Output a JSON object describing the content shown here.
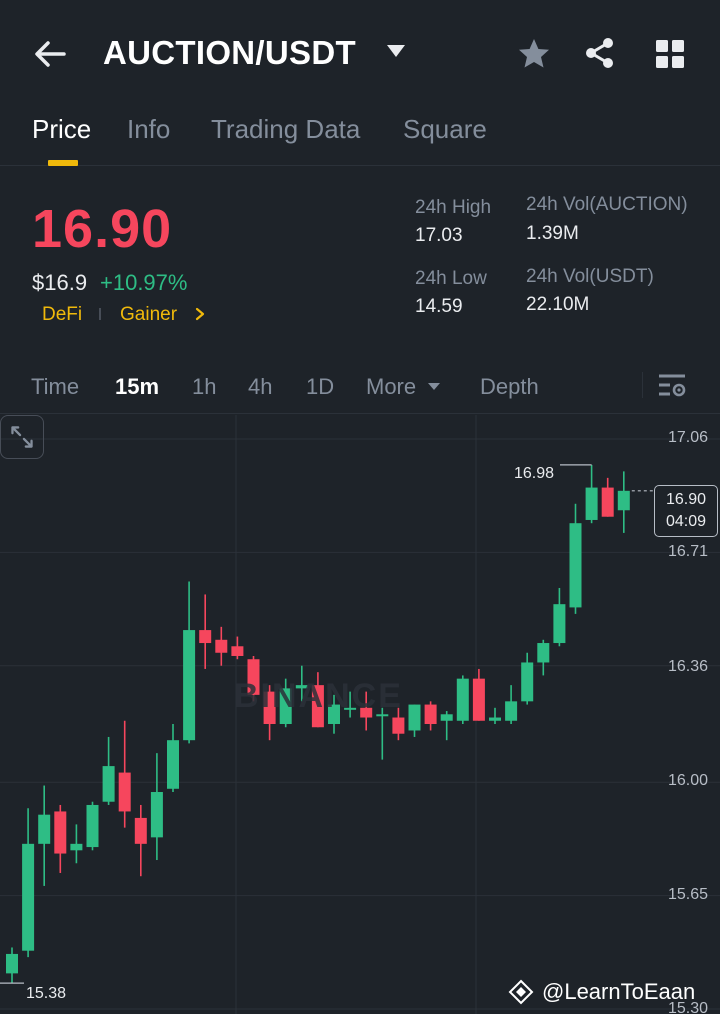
{
  "header": {
    "pair": "AUCTION/USDT",
    "back_icon": "arrow-left-icon",
    "favorite_icon": "star-icon",
    "share_icon": "share-icon",
    "menu_icon": "grid-icon"
  },
  "tabs": [
    {
      "label": "Price",
      "active": true
    },
    {
      "label": "Info",
      "active": false
    },
    {
      "label": "Trading Data",
      "active": false
    },
    {
      "label": "Square",
      "active": false
    }
  ],
  "price": {
    "last": "16.90",
    "usd": "$16.9",
    "change": "+10.97%",
    "tags": [
      "DeFi",
      "Gainer"
    ]
  },
  "stats": {
    "high_label": "24h High",
    "high_value": "17.03",
    "low_label": "24h Low",
    "low_value": "14.59",
    "vol_base_label": "24h Vol(AUCTION)",
    "vol_base_value": "1.39M",
    "vol_quote_label": "24h Vol(USDT)",
    "vol_quote_value": "22.10M"
  },
  "intervals": {
    "items": [
      "Time",
      "15m",
      "1h",
      "4h",
      "1D",
      "More",
      "Depth"
    ],
    "active": "15m"
  },
  "chart_data": {
    "type": "candlestick",
    "interval": "15m",
    "y_ticks": [
      "17.06",
      "16.71",
      "16.36",
      "16.00",
      "15.65",
      "15.30"
    ],
    "ylim": [
      15.3,
      17.06
    ],
    "high_marker": "16.98",
    "low_marker": "15.38",
    "current_price": "16.90",
    "countdown": "04:09",
    "up_color": "#2ebd85",
    "down_color": "#f6465d",
    "candles": [
      {
        "o": 15.41,
        "h": 15.49,
        "l": 15.38,
        "c": 15.47
      },
      {
        "o": 15.48,
        "h": 15.92,
        "l": 15.46,
        "c": 15.81
      },
      {
        "o": 15.81,
        "h": 15.99,
        "l": 15.68,
        "c": 15.9
      },
      {
        "o": 15.91,
        "h": 15.93,
        "l": 15.72,
        "c": 15.78
      },
      {
        "o": 15.79,
        "h": 15.87,
        "l": 15.75,
        "c": 15.81
      },
      {
        "o": 15.8,
        "h": 15.94,
        "l": 15.79,
        "c": 15.93
      },
      {
        "o": 15.94,
        "h": 16.14,
        "l": 15.93,
        "c": 16.05
      },
      {
        "o": 16.03,
        "h": 16.19,
        "l": 15.86,
        "c": 15.91
      },
      {
        "o": 15.89,
        "h": 15.93,
        "l": 15.71,
        "c": 15.81
      },
      {
        "o": 15.83,
        "h": 16.09,
        "l": 15.76,
        "c": 15.97
      },
      {
        "o": 15.98,
        "h": 16.18,
        "l": 15.97,
        "c": 16.13
      },
      {
        "o": 16.13,
        "h": 16.62,
        "l": 16.12,
        "c": 16.47
      },
      {
        "o": 16.47,
        "h": 16.58,
        "l": 16.35,
        "c": 16.43
      },
      {
        "o": 16.44,
        "h": 16.48,
        "l": 16.36,
        "c": 16.4
      },
      {
        "o": 16.42,
        "h": 16.45,
        "l": 16.38,
        "c": 16.39
      },
      {
        "o": 16.38,
        "h": 16.39,
        "l": 16.25,
        "c": 16.27
      },
      {
        "o": 16.28,
        "h": 16.3,
        "l": 16.13,
        "c": 16.18
      },
      {
        "o": 16.18,
        "h": 16.32,
        "l": 16.17,
        "c": 16.29
      },
      {
        "o": 16.29,
        "h": 16.36,
        "l": 16.25,
        "c": 16.3
      },
      {
        "o": 16.3,
        "h": 16.34,
        "l": 16.17,
        "c": 16.17
      },
      {
        "o": 16.18,
        "h": 16.27,
        "l": 16.15,
        "c": 16.24
      },
      {
        "o": 16.23,
        "h": 16.28,
        "l": 16.2,
        "c": 16.23
      },
      {
        "o": 16.23,
        "h": 16.28,
        "l": 16.16,
        "c": 16.2
      },
      {
        "o": 16.21,
        "h": 16.23,
        "l": 16.07,
        "c": 16.21
      },
      {
        "o": 16.2,
        "h": 16.23,
        "l": 16.13,
        "c": 16.15
      },
      {
        "o": 16.16,
        "h": 16.24,
        "l": 16.14,
        "c": 16.24
      },
      {
        "o": 16.24,
        "h": 16.25,
        "l": 16.16,
        "c": 16.18
      },
      {
        "o": 16.19,
        "h": 16.22,
        "l": 16.13,
        "c": 16.21
      },
      {
        "o": 16.19,
        "h": 16.33,
        "l": 16.18,
        "c": 16.32
      },
      {
        "o": 16.32,
        "h": 16.35,
        "l": 16.19,
        "c": 16.19
      },
      {
        "o": 16.19,
        "h": 16.23,
        "l": 16.18,
        "c": 16.2
      },
      {
        "o": 16.19,
        "h": 16.3,
        "l": 16.18,
        "c": 16.25
      },
      {
        "o": 16.25,
        "h": 16.4,
        "l": 16.24,
        "c": 16.37
      },
      {
        "o": 16.37,
        "h": 16.44,
        "l": 16.33,
        "c": 16.43
      },
      {
        "o": 16.43,
        "h": 16.6,
        "l": 16.42,
        "c": 16.55
      },
      {
        "o": 16.54,
        "h": 16.86,
        "l": 16.52,
        "c": 16.8
      },
      {
        "o": 16.81,
        "h": 16.98,
        "l": 16.8,
        "c": 16.91
      },
      {
        "o": 16.91,
        "h": 16.94,
        "l": 16.82,
        "c": 16.82
      },
      {
        "o": 16.84,
        "h": 16.96,
        "l": 16.77,
        "c": 16.9
      }
    ]
  },
  "watermark": "BINANCE",
  "attribution": "@LearnToEaan"
}
